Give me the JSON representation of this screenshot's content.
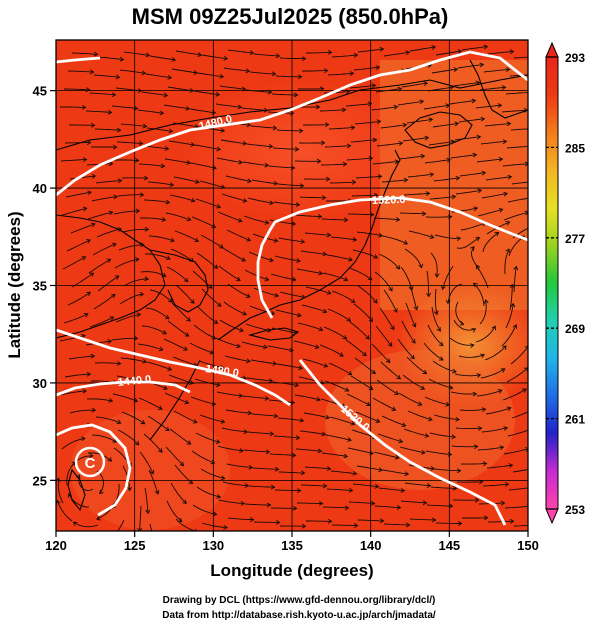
{
  "title": "MSM 09Z25Jul2025 (850.0hPa)",
  "map": {
    "xlabel": "Longitude (degrees)",
    "ylabel": "Latitude  (degrees)",
    "x_ticks": [
      "120",
      "125",
      "130",
      "135",
      "140",
      "145",
      "150"
    ],
    "y_ticks": [
      "25",
      "30",
      "35",
      "40",
      "45"
    ],
    "lon_range": [
      120,
      150
    ],
    "lat_range": [
      22.4,
      47.6
    ],
    "field_colors": {
      "warm": "#ee3a14",
      "hot": "#f24a18",
      "cooler": "#f0662a",
      "orange": "#f2822a"
    },
    "contours": [
      {
        "label": "1480.0"
      },
      {
        "label": "1520.0"
      },
      {
        "label": "1440.0"
      },
      {
        "label": "1480.0"
      },
      {
        "label": "1520.0"
      }
    ],
    "low_marker": "C"
  },
  "colorbar": {
    "ticks": [
      "293",
      "285",
      "277",
      "269",
      "261",
      "253"
    ],
    "stops": [
      "#ff44aa",
      "#c62bd0",
      "#2222c8",
      "#1f6ee6",
      "#1fb4e8",
      "#22d0b0",
      "#22c83c",
      "#9ad21e",
      "#e8e023",
      "#f2b423",
      "#f47a1c",
      "#ee3a14",
      "#e8261a"
    ]
  },
  "credits": {
    "line1": "Drawing by DCL (https://www.gfd-dennou.org/library/dcl/)",
    "line2": "Data from http://database.rish.kyoto-u.ac.jp/arch/jmadata/"
  }
}
